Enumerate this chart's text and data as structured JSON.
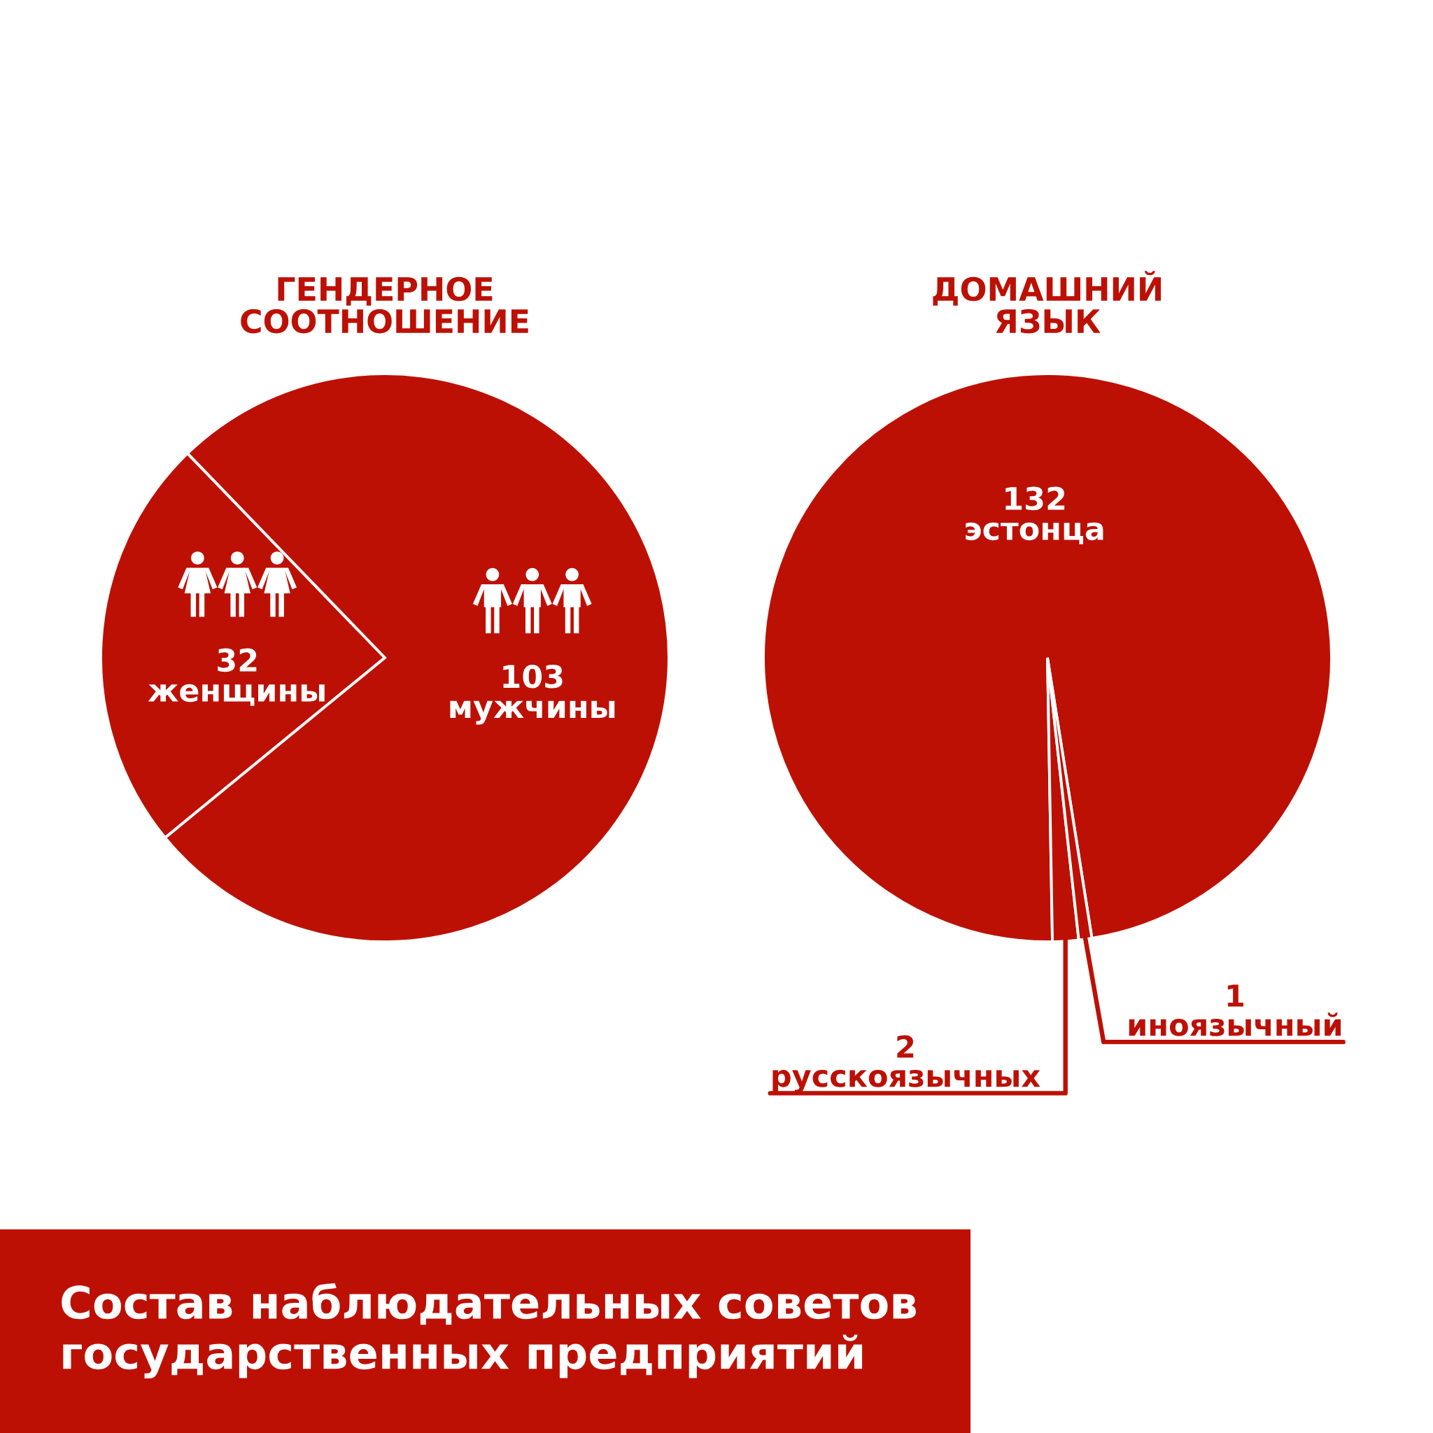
{
  "chart_data": [
    {
      "type": "pie",
      "title": "ГЕНДЕРНОЕ\nСООТНОШЕНИЕ",
      "categories": [
        "женщины",
        "мужчины"
      ],
      "values": [
        32,
        103
      ],
      "colors": [
        "#bd1004",
        "#bd1004"
      ],
      "data_labels": true,
      "annotations": [
        "Состав наблюдательных советов\nгосударственных предприятий"
      ]
    },
    {
      "type": "pie",
      "title": "ДОМАШНИЙ\nЯЗЫК",
      "categories": [
        "эстонца",
        "русскоязычных",
        "иноязычный"
      ],
      "values": [
        132,
        2,
        1
      ],
      "colors": [
        "#bd1004",
        "#bd1004",
        "#bd1004"
      ],
      "data_labels": true
    }
  ]
}
